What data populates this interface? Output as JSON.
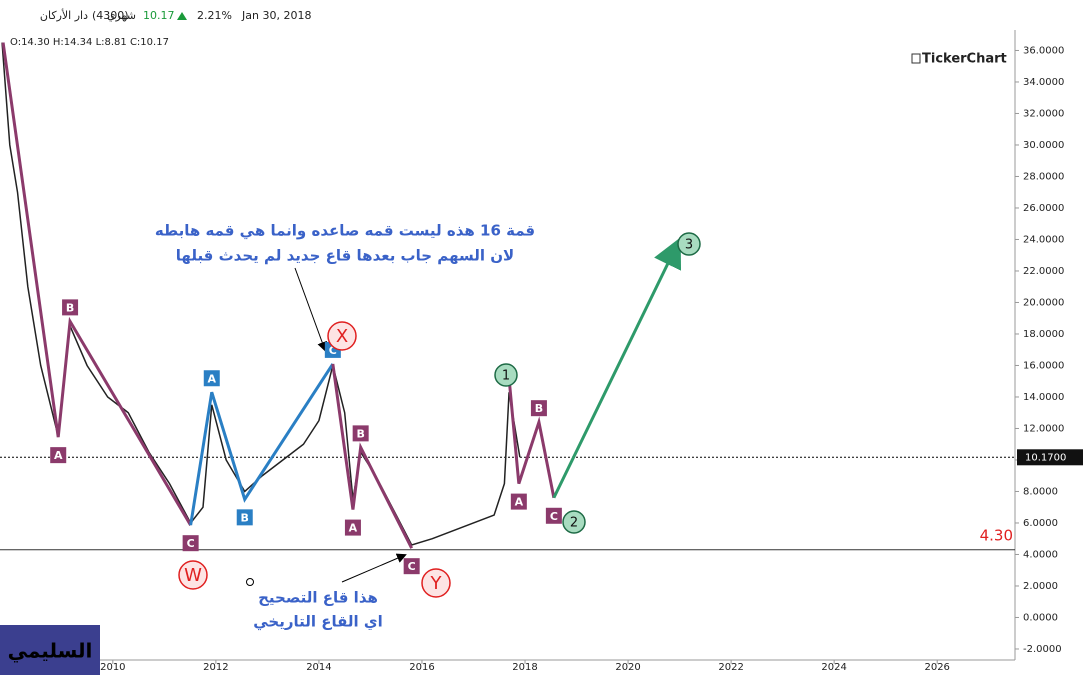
{
  "header": {
    "name": "دار الأركان",
    "code": "(4300)",
    "period": "شهري",
    "last": "10.17",
    "change": "2.21%",
    "date": "Jan 30, 2018",
    "ohlc": "O:14.30 H:14.34 L:8.81 C:10.17",
    "logo": "TickerChart"
  },
  "chart_data": {
    "type": "line",
    "price": {
      "color": "#222222",
      "x": [
        2007.85,
        2008.0,
        2008.15,
        2008.35,
        2008.6,
        2008.94,
        2009.17,
        2009.5,
        2009.9,
        2010.3,
        2010.7,
        2011.1,
        2011.51,
        2011.75,
        2011.92,
        2012.2,
        2012.56,
        2012.9,
        2013.3,
        2013.7,
        2014.0,
        2014.27,
        2014.5,
        2014.66,
        2014.81,
        2015.1,
        2015.5,
        2015.8,
        2016.2,
        2016.6,
        2017.0,
        2017.4,
        2017.6,
        2017.69,
        2017.9
      ],
      "values": [
        36.5,
        30,
        27,
        21,
        16,
        11.5,
        18.5,
        16,
        14,
        13,
        10.5,
        8.5,
        6,
        7,
        13.5,
        10,
        8,
        9,
        10,
        11,
        12.5,
        16,
        13,
        7.5,
        10.5,
        9,
        6.5,
        4.6,
        5,
        5.5,
        6,
        6.5,
        8.5,
        14.3,
        10.17
      ]
    },
    "waves": [
      {
        "color": "#8b3a6b",
        "x": [
          2007.87,
          2008.94,
          2009.17,
          2011.51
        ],
        "y": [
          36.5,
          11.45,
          18.8,
          5.86
        ],
        "labels": [
          null,
          "A",
          "B",
          "C"
        ]
      },
      {
        "color": "#2a7fc4",
        "x": [
          2011.51,
          2011.92,
          2012.56,
          2014.27
        ],
        "y": [
          5.86,
          14.3,
          7.5,
          16.1
        ],
        "labels": [
          null,
          "A",
          "B",
          "C"
        ]
      },
      {
        "color": "#8b3a6b",
        "x": [
          2014.27,
          2014.66,
          2014.81,
          2015.8
        ],
        "y": [
          16.1,
          6.85,
          10.8,
          4.4
        ],
        "labels": [
          null,
          "A",
          "B",
          "C"
        ]
      },
      {
        "color": "#8b3a6b",
        "x": [
          2017.69,
          2017.88,
          2018.27,
          2018.56
        ],
        "y": [
          15.2,
          8.5,
          12.4,
          7.6
        ],
        "labels": [
          null,
          "A",
          "B",
          "C"
        ]
      },
      {
        "color": "#2e9a6a",
        "x": [
          2018.56,
          2020.97
        ],
        "y": [
          7.6,
          23.8
        ],
        "arrow": true
      }
    ],
    "annotations": [
      "W",
      "X",
      "Y",
      "1",
      "2",
      "3"
    ],
    "notes": [
      [
        "قمة 16 هذه ليست قمه صاعده وانما هي قمه هابطه",
        "لان السهم جاب بعدها قاع جديد لم يحدث قبلها"
      ],
      [
        "هذا قاع التصحيح",
        "اي القاع التاريخي"
      ]
    ],
    "support": {
      "value": 4.3,
      "label": "4.30"
    },
    "last_price": {
      "value": 10.17,
      "label": "10.1700"
    },
    "author": "السليمي",
    "xlim": [
      2007.81,
      2027.51
    ],
    "ylim": [
      -2.7,
      37.3
    ],
    "xticks": [
      2010,
      2012,
      2014,
      2016,
      2018,
      2020,
      2022,
      2024,
      2026
    ],
    "yticks": [
      {
        "value": 36,
        "label": "36.0000"
      },
      {
        "value": 34,
        "label": "34.0000"
      },
      {
        "value": 32,
        "label": "32.0000"
      },
      {
        "value": 30,
        "label": "30.0000"
      },
      {
        "value": 28,
        "label": "28.0000"
      },
      {
        "value": 26,
        "label": "26.0000"
      },
      {
        "value": 24,
        "label": "24.0000"
      },
      {
        "value": 22,
        "label": "22.0000"
      },
      {
        "value": 20,
        "label": "20.0000"
      },
      {
        "value": 18,
        "label": "18.0000"
      },
      {
        "value": 16,
        "label": "16.0000"
      },
      {
        "value": 14,
        "label": "14.0000"
      },
      {
        "value": 12,
        "label": "12.0000"
      },
      {
        "value": 10,
        "label": "10.0000"
      },
      {
        "value": 8,
        "label": "8.0000"
      },
      {
        "value": 6,
        "label": "6.0000"
      },
      {
        "value": 4,
        "label": "4.0000"
      },
      {
        "value": 2,
        "label": "2.0000"
      },
      {
        "value": 0,
        "label": "0.0000"
      },
      {
        "value": -2,
        "label": "-2.0000"
      }
    ]
  }
}
